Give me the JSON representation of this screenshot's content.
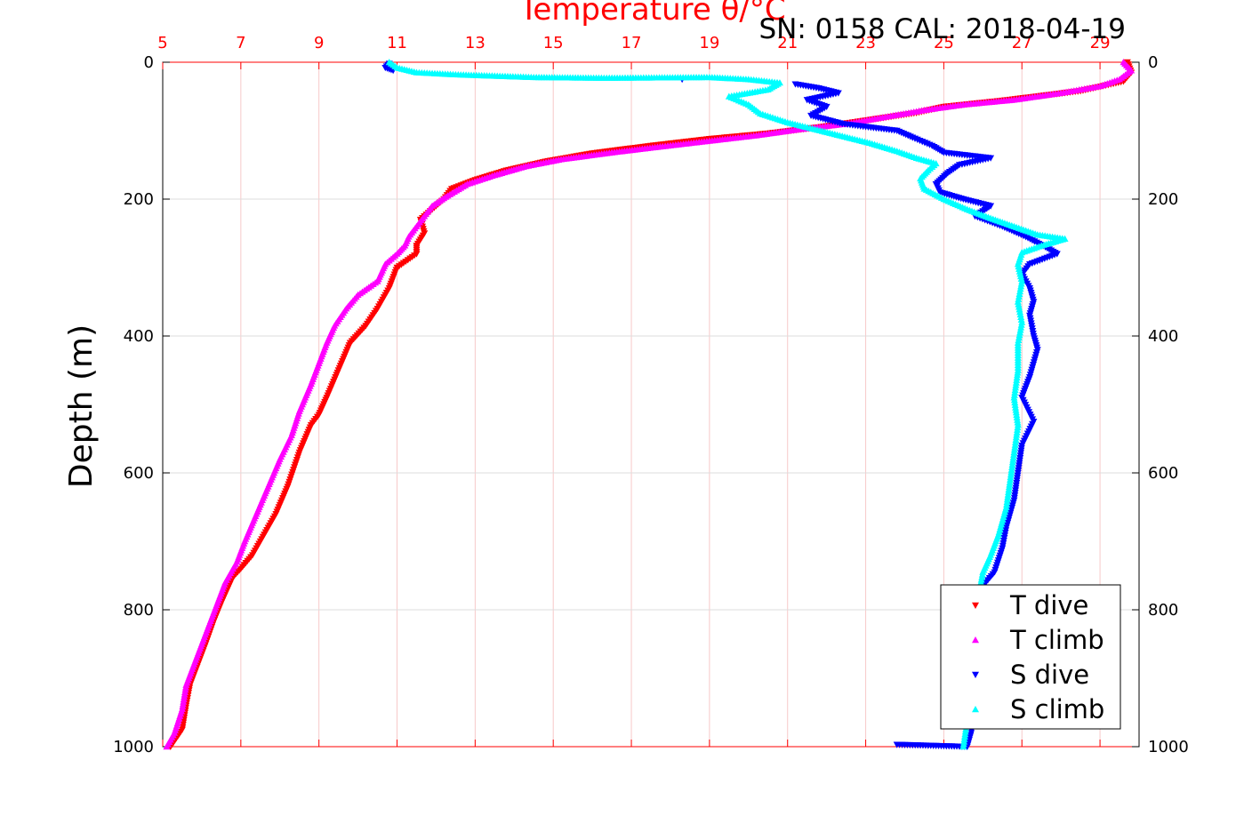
{
  "chart_data": {
    "type": "scatter",
    "title": "Temperature θ/°C",
    "subtitle": "SN: 0158  CAL: 2018-04-19",
    "ylabel": "Depth (m)",
    "xlim": [
      5,
      30
    ],
    "ylim": [
      0,
      1000
    ],
    "y_reversed": true,
    "x_ticks": [
      "5",
      "7",
      "9",
      "11",
      "13",
      "15",
      "17",
      "19",
      "21",
      "23",
      "25",
      "27",
      "29"
    ],
    "y_ticks": [
      "0",
      "200",
      "400",
      "600",
      "800",
      "1000"
    ],
    "grid": true,
    "legend_position": "bottom-right",
    "colors": {
      "title": "#ff0000",
      "top_axis": "#ff0000",
      "t_dive": "#ff0000",
      "t_climb": "#ff00ff",
      "s_dive": "#0000ff",
      "s_climb": "#00ffff"
    },
    "series": [
      {
        "name": "T dive",
        "marker": "triangle-down",
        "color": "#ff0000",
        "points": [
          [
            29.7,
            0
          ],
          [
            29.8,
            15
          ],
          [
            29.6,
            28
          ],
          [
            28.5,
            42
          ],
          [
            26.5,
            56
          ],
          [
            25.0,
            65
          ],
          [
            24.3,
            74
          ],
          [
            23.0,
            85
          ],
          [
            21.8,
            95
          ],
          [
            20.5,
            104
          ],
          [
            19.0,
            112
          ],
          [
            17.5,
            122
          ],
          [
            16.0,
            133
          ],
          [
            14.8,
            145
          ],
          [
            13.8,
            158
          ],
          [
            13.0,
            172
          ],
          [
            12.4,
            185
          ],
          [
            12.2,
            200
          ],
          [
            11.9,
            215
          ],
          [
            11.6,
            230
          ],
          [
            11.7,
            250
          ],
          [
            11.5,
            268
          ],
          [
            11.5,
            280
          ],
          [
            11.0,
            300
          ],
          [
            10.8,
            330
          ],
          [
            10.5,
            360
          ],
          [
            10.2,
            385
          ],
          [
            9.8,
            410
          ],
          [
            9.5,
            450
          ],
          [
            9.2,
            490
          ],
          [
            9.0,
            515
          ],
          [
            8.8,
            530
          ],
          [
            8.5,
            570
          ],
          [
            8.2,
            620
          ],
          [
            7.9,
            660
          ],
          [
            7.6,
            690
          ],
          [
            7.3,
            720
          ],
          [
            7.0,
            740
          ],
          [
            6.8,
            752
          ],
          [
            6.5,
            790
          ],
          [
            6.3,
            818
          ],
          [
            6.1,
            850
          ],
          [
            5.9,
            880
          ],
          [
            5.7,
            910
          ],
          [
            5.6,
            940
          ],
          [
            5.5,
            975
          ],
          [
            5.2,
            1000
          ]
        ]
      },
      {
        "name": "T climb",
        "marker": "triangle-up",
        "color": "#ff00ff",
        "points": [
          [
            29.6,
            0
          ],
          [
            29.8,
            12
          ],
          [
            29.5,
            25
          ],
          [
            29.0,
            35
          ],
          [
            28.0,
            45
          ],
          [
            26.8,
            55
          ],
          [
            25.5,
            62
          ],
          [
            24.5,
            70
          ],
          [
            23.5,
            80
          ],
          [
            22.5,
            90
          ],
          [
            21.3,
            98
          ],
          [
            20.2,
            107
          ],
          [
            19.0,
            115
          ],
          [
            17.8,
            123
          ],
          [
            16.5,
            132
          ],
          [
            15.2,
            142
          ],
          [
            14.3,
            152
          ],
          [
            13.5,
            165
          ],
          [
            12.8,
            178
          ],
          [
            12.3,
            195
          ],
          [
            11.9,
            210
          ],
          [
            11.7,
            225
          ],
          [
            11.5,
            240
          ],
          [
            11.3,
            255
          ],
          [
            11.2,
            268
          ],
          [
            11.0,
            280
          ],
          [
            10.7,
            295
          ],
          [
            10.5,
            320
          ],
          [
            10.0,
            340
          ],
          [
            9.7,
            360
          ],
          [
            9.4,
            385
          ],
          [
            9.2,
            410
          ],
          [
            9.0,
            440
          ],
          [
            8.8,
            470
          ],
          [
            8.5,
            510
          ],
          [
            8.3,
            545
          ],
          [
            8.0,
            580
          ],
          [
            7.7,
            620
          ],
          [
            7.4,
            660
          ],
          [
            7.1,
            700
          ],
          [
            6.9,
            730
          ],
          [
            6.6,
            760
          ],
          [
            6.4,
            790
          ],
          [
            6.2,
            820
          ],
          [
            6.0,
            850
          ],
          [
            5.8,
            880
          ],
          [
            5.6,
            910
          ],
          [
            5.5,
            945
          ],
          [
            5.3,
            980
          ],
          [
            5.1,
            1000
          ]
        ]
      },
      {
        "name": "S dive",
        "marker": "triangle-down",
        "color": "#0000ff",
        "points": [
          [
            10.8,
            2
          ],
          [
            10.7,
            8
          ],
          [
            10.9,
            12
          ],
          [
            18.3,
            25
          ],
          [
            21.2,
            32
          ],
          [
            21.8,
            38
          ],
          [
            22.3,
            45
          ],
          [
            21.5,
            55
          ],
          [
            22.0,
            65
          ],
          [
            21.6,
            78
          ],
          [
            22.4,
            90
          ],
          [
            23.8,
            100
          ],
          [
            24.2,
            110
          ],
          [
            24.7,
            122
          ],
          [
            25.0,
            132
          ],
          [
            26.2,
            140
          ],
          [
            25.4,
            150
          ],
          [
            25.1,
            162
          ],
          [
            24.8,
            178
          ],
          [
            24.9,
            190
          ],
          [
            25.5,
            200
          ],
          [
            26.2,
            210
          ],
          [
            25.8,
            225
          ],
          [
            26.5,
            240
          ],
          [
            27.1,
            255
          ],
          [
            27.6,
            270
          ],
          [
            27.9,
            280
          ],
          [
            27.2,
            295
          ],
          [
            27.0,
            310
          ],
          [
            27.2,
            330
          ],
          [
            27.3,
            350
          ],
          [
            27.2,
            370
          ],
          [
            27.3,
            400
          ],
          [
            27.4,
            420
          ],
          [
            27.2,
            460
          ],
          [
            27.0,
            490
          ],
          [
            27.3,
            525
          ],
          [
            27.0,
            560
          ],
          [
            26.9,
            600
          ],
          [
            26.8,
            640
          ],
          [
            26.6,
            680
          ],
          [
            26.5,
            710
          ],
          [
            26.3,
            745
          ],
          [
            26.0,
            765
          ],
          [
            25.9,
            790
          ],
          [
            25.8,
            820
          ],
          [
            25.9,
            860
          ],
          [
            25.8,
            900
          ],
          [
            25.8,
            940
          ],
          [
            25.7,
            980
          ],
          [
            25.6,
            1000
          ],
          [
            23.8,
            997
          ]
        ]
      },
      {
        "name": "S climb",
        "marker": "triangle-up",
        "color": "#00ffff",
        "points": [
          [
            10.8,
            0
          ],
          [
            11.0,
            8
          ],
          [
            11.5,
            15
          ],
          [
            12.5,
            18
          ],
          [
            13.5,
            20
          ],
          [
            14.5,
            22
          ],
          [
            16.3,
            23
          ],
          [
            19.0,
            22
          ],
          [
            20.0,
            25
          ],
          [
            20.8,
            30
          ],
          [
            20.5,
            40
          ],
          [
            19.5,
            50
          ],
          [
            20.0,
            62
          ],
          [
            20.3,
            75
          ],
          [
            21.0,
            88
          ],
          [
            21.7,
            98
          ],
          [
            22.4,
            108
          ],
          [
            23.1,
            118
          ],
          [
            23.8,
            130
          ],
          [
            24.3,
            140
          ],
          [
            24.8,
            148
          ],
          [
            24.6,
            158
          ],
          [
            24.4,
            170
          ],
          [
            24.5,
            185
          ],
          [
            25.0,
            200
          ],
          [
            25.6,
            215
          ],
          [
            26.2,
            228
          ],
          [
            26.8,
            240
          ],
          [
            27.4,
            252
          ],
          [
            28.1,
            258
          ],
          [
            27.5,
            268
          ],
          [
            27.0,
            278
          ],
          [
            26.9,
            295
          ],
          [
            27.0,
            320
          ],
          [
            26.9,
            350
          ],
          [
            27.0,
            380
          ],
          [
            26.9,
            410
          ],
          [
            26.9,
            450
          ],
          [
            26.8,
            490
          ],
          [
            26.9,
            530
          ],
          [
            26.8,
            570
          ],
          [
            26.7,
            610
          ],
          [
            26.6,
            650
          ],
          [
            26.4,
            690
          ],
          [
            26.2,
            720
          ],
          [
            26.0,
            745
          ],
          [
            25.9,
            775
          ],
          [
            25.8,
            810
          ],
          [
            25.7,
            860
          ],
          [
            25.7,
            910
          ],
          [
            25.6,
            960
          ],
          [
            25.5,
            1000
          ]
        ]
      }
    ]
  }
}
